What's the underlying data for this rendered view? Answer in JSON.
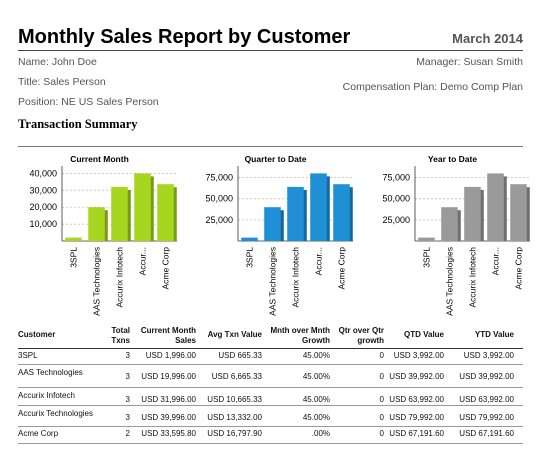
{
  "header": {
    "title": "Monthly Sales Report by Customer",
    "date": "March 2014"
  },
  "info": {
    "name": "Name: John Doe",
    "title": "Title: Sales Person",
    "position": "Position: NE US Sales Person",
    "manager": "Manager: Susan Smith",
    "comp_plan": "Compensation Plan: Demo Comp Plan"
  },
  "section_title": "Transaction Summary",
  "colors": {
    "current": "#a6d620",
    "quarter": "#1f8fd6",
    "year": "#9a9a9a"
  },
  "chart_data": [
    {
      "type": "bar",
      "title": "Current Month",
      "categories": [
        "3SPL",
        "AAS Technologies",
        "Accurix Infotech",
        "Accur...",
        "Acme Corp"
      ],
      "values": [
        1996,
        19996,
        31996,
        39996,
        33595.8
      ],
      "yticks": [
        "10,000",
        "20,000",
        "30,000",
        "40,000"
      ],
      "ytick_values": [
        10000,
        20000,
        30000,
        40000
      ],
      "ylim": [
        0,
        42000
      ],
      "grid": true
    },
    {
      "type": "bar",
      "title": "Quarter to Date",
      "categories": [
        "3SPL",
        "AAS Technologies",
        "Accurix Infotech",
        "Accur...",
        "Acme Corp"
      ],
      "values": [
        3992,
        39992,
        63992,
        79992,
        67191.6
      ],
      "yticks": [
        "25,000",
        "50,000",
        "75,000"
      ],
      "ytick_values": [
        25000,
        50000,
        75000
      ],
      "ylim": [
        0,
        84000
      ],
      "grid": true
    },
    {
      "type": "bar",
      "title": "Year to Date",
      "categories": [
        "3SPL",
        "AAS Technologies",
        "Accurix Infotech",
        "Accur...",
        "Acme Corp"
      ],
      "values": [
        3992,
        39992,
        63992,
        79992,
        67191.6
      ],
      "yticks": [
        "25,000",
        "50,000",
        "75,000"
      ],
      "ytick_values": [
        25000,
        50000,
        75000
      ],
      "ylim": [
        0,
        84000
      ],
      "grid": true
    }
  ],
  "table": {
    "headers": [
      "Customer",
      "Total Txns",
      "Current Month Sales",
      "Avg Txn Value",
      "Mnth over Mnth Growth",
      "Qtr over Qtr growth",
      "QTD Value",
      "YTD Value"
    ],
    "rows": [
      [
        "3SPL",
        "3",
        "USD 1,996.00",
        "USD 665.33",
        "45.00%",
        "0",
        "USD 3,992.00",
        "USD 3,992.00"
      ],
      [
        "AAS Technologies",
        "3",
        "USD 19,996.00",
        "USD 6,665.33",
        "45.00%",
        "0",
        "USD 39,992.00",
        "USD 39,992.00"
      ],
      [
        "Accurix Infotech",
        "3",
        "USD 31,996.00",
        "USD 10,665.33",
        "45.00%",
        "0",
        "USD 63,992.00",
        "USD 63,992.00"
      ],
      [
        "Accurix Technologies",
        "3",
        "USD 39,996.00",
        "USD 13,332.00",
        "45.00%",
        "0",
        "USD 79,992.00",
        "USD 79,992.00"
      ],
      [
        "Acme Corp",
        "2",
        "USD 33,595.80",
        "USD 16,797.90",
        ".00%",
        "0",
        "USD 67,191.60",
        "USD 67,191.60"
      ]
    ]
  }
}
